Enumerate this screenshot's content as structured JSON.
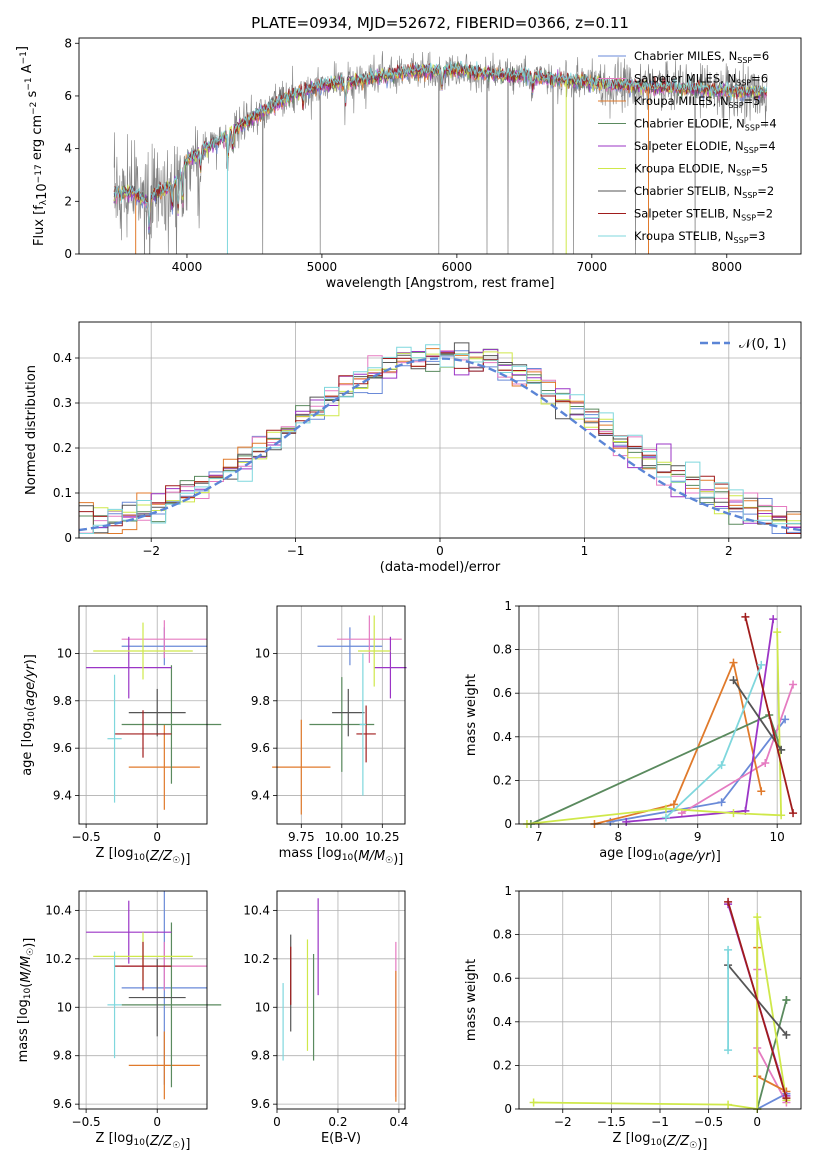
{
  "figure": {
    "title": "PLATE=0934, MJD=52672, FIBERID=0366, z=0.11"
  },
  "model_colors": [
    "#6a8ad8",
    "#e57bc1",
    "#e07a2b",
    "#5a8a5e",
    "#9b35c6",
    "#cfe84a",
    "#555555",
    "#a01c1c",
    "#7fd7dd"
  ],
  "chart_data": [
    {
      "id": "spectrum",
      "type": "line",
      "title": "PLATE=0934, MJD=52672, FIBERID=0366, z=0.11",
      "xlabel": "wavelength [Angstrom, rest frame]",
      "ylabel": "Flux [f_λ 10^-17 erg cm^-2 s^-1 A^-1]",
      "xlim": [
        3200,
        8550
      ],
      "ylim": [
        0,
        8.2
      ],
      "xticks": [
        4000,
        5000,
        6000,
        7000,
        8000
      ],
      "yticks": [
        0,
        2,
        4,
        6,
        8
      ],
      "data_color": "#808080",
      "legend_position": "right",
      "continuum_x": [
        3460,
        3600,
        3700,
        3800,
        3900,
        4000,
        4200,
        4400,
        4600,
        4800,
        5000,
        5300,
        5600,
        6000,
        6300,
        6600,
        7000,
        7300,
        7600,
        8000,
        8300
      ],
      "continuum_y": [
        2.3,
        2.35,
        2.0,
        2.4,
        2.6,
        3.6,
        4.2,
        4.9,
        5.5,
        6.1,
        6.4,
        6.6,
        6.9,
        7.0,
        6.8,
        6.7,
        6.5,
        6.4,
        6.3,
        6.2,
        6.1
      ],
      "series": [
        {
          "name": "Chabrier MILES, N_SSP=6",
          "color": "#6a8ad8"
        },
        {
          "name": "Salpeter MILES, N_SSP=6",
          "color": "#e57bc1"
        },
        {
          "name": "Kroupa MILES, N_SSP=5",
          "color": "#e07a2b"
        },
        {
          "name": "Chabrier ELODIE, N_SSP=4",
          "color": "#5a8a5e"
        },
        {
          "name": "Salpeter ELODIE, N_SSP=4",
          "color": "#9b35c6"
        },
        {
          "name": "Kroupa ELODIE, N_SSP=5",
          "color": "#cfe84a"
        },
        {
          "name": "Chabrier STELIB, N_SSP=2",
          "color": "#555555"
        },
        {
          "name": "Salpeter STELIB, N_SSP=2",
          "color": "#a01c1c"
        },
        {
          "name": "Kroupa STELIB, N_SSP=3",
          "color": "#7fd7dd"
        }
      ]
    },
    {
      "id": "residuals",
      "type": "histogram",
      "xlabel": "(data-model)/error",
      "ylabel": "Normed distribution",
      "xlim": [
        -2.5,
        2.5
      ],
      "ylim": [
        0,
        0.48
      ],
      "xticks": [
        -2,
        -1,
        0,
        1,
        2
      ],
      "yticks": [
        0.0,
        0.1,
        0.2,
        0.3,
        0.4
      ],
      "grid": true,
      "gaussian_label": "𝒩(0, 1)",
      "gaussian_color": "#5b85d6",
      "legend_position": "top-right",
      "bin_width": 0.1
    },
    {
      "id": "age-vs-Z",
      "type": "errorbar",
      "xlabel": "Z [log10(Z/Z☉)]",
      "ylabel": "age [log10(age/yr)]",
      "xlim": [
        -0.55,
        0.35
      ],
      "ylim": [
        9.28,
        10.2
      ],
      "xticks": [
        -0.5,
        0.0
      ],
      "yticks": [
        9.4,
        9.6,
        9.8,
        10.0
      ],
      "grid": true,
      "points": [
        {
          "x": 0.05,
          "y": 10.03,
          "xerr": 0.3,
          "yerr": 0.08,
          "color": "#6a8ad8"
        },
        {
          "x": 0.05,
          "y": 10.06,
          "xerr": 0.3,
          "yerr": 0.08,
          "color": "#e57bc1"
        },
        {
          "x": 0.05,
          "y": 9.52,
          "xerr": 0.25,
          "yerr": 0.18,
          "color": "#e07a2b"
        },
        {
          "x": 0.1,
          "y": 9.7,
          "xerr": 0.35,
          "yerr": 0.25,
          "color": "#5a8a5e"
        },
        {
          "x": -0.2,
          "y": 9.94,
          "xerr": 0.3,
          "yerr": 0.13,
          "color": "#9b35c6"
        },
        {
          "x": -0.1,
          "y": 10.01,
          "xerr": 0.35,
          "yerr": 0.12,
          "color": "#cfe84a"
        },
        {
          "x": 0.0,
          "y": 9.75,
          "xerr": 0.2,
          "yerr": 0.1,
          "color": "#555555"
        },
        {
          "x": -0.1,
          "y": 9.66,
          "xerr": 0.2,
          "yerr": 0.1,
          "color": "#a01c1c"
        },
        {
          "x": -0.3,
          "y": 9.64,
          "xerr": 0.05,
          "yerr": 0.27,
          "color": "#7fd7dd"
        }
      ]
    },
    {
      "id": "age-vs-mass",
      "type": "errorbar",
      "xlabel": "mass [log10(M/M☉)]",
      "xlim": [
        9.6,
        10.39
      ],
      "ylim": [
        9.28,
        10.2
      ],
      "xticks": [
        9.75,
        10.0,
        10.25
      ],
      "xticklabels": [
        "9.75",
        "10.00",
        "10.25"
      ],
      "yticks": [
        9.4,
        9.6,
        9.8,
        10.0
      ],
      "grid": true,
      "points": [
        {
          "x": 10.05,
          "y": 10.03,
          "xerr": 0.2,
          "yerr": 0.08,
          "color": "#6a8ad8"
        },
        {
          "x": 10.17,
          "y": 10.06,
          "xerr": 0.2,
          "yerr": 0.1,
          "color": "#e57bc1"
        },
        {
          "x": 9.75,
          "y": 9.52,
          "xerr": 0.18,
          "yerr": 0.2,
          "color": "#e07a2b"
        },
        {
          "x": 10.0,
          "y": 9.7,
          "xerr": 0.2,
          "yerr": 0.2,
          "color": "#5a8a5e"
        },
        {
          "x": 10.3,
          "y": 9.94,
          "xerr": 0.1,
          "yerr": 0.13,
          "color": "#9b35c6"
        },
        {
          "x": 10.2,
          "y": 10.01,
          "xerr": 0.1,
          "yerr": 0.15,
          "color": "#cfe84a"
        },
        {
          "x": 10.04,
          "y": 9.75,
          "xerr": 0.1,
          "yerr": 0.1,
          "color": "#555555"
        },
        {
          "x": 10.15,
          "y": 9.66,
          "xerr": 0.06,
          "yerr": 0.12,
          "color": "#a01c1c"
        },
        {
          "x": 10.13,
          "y": 9.7,
          "xerr": 0.02,
          "yerr": 0.3,
          "color": "#7fd7dd"
        }
      ]
    },
    {
      "id": "weight-vs-age",
      "type": "line",
      "xlabel": "age [log10(age/yr)]",
      "ylabel": "mass weight",
      "xlim": [
        6.75,
        10.3
      ],
      "ylim": [
        0,
        1.0
      ],
      "xticks": [
        7,
        8,
        9,
        10
      ],
      "yticks": [
        0.0,
        0.2,
        0.4,
        0.6,
        0.8,
        1.0
      ],
      "grid": true,
      "series": [
        {
          "color": "#6a8ad8",
          "x": [
            7.9,
            9.3,
            10.1
          ],
          "y": [
            0.01,
            0.1,
            0.48
          ]
        },
        {
          "color": "#e57bc1",
          "x": [
            8.8,
            9.85,
            10.2
          ],
          "y": [
            0.05,
            0.28,
            0.64
          ]
        },
        {
          "color": "#e07a2b",
          "x": [
            7.7,
            8.7,
            9.45,
            9.8
          ],
          "y": [
            0.0,
            0.09,
            0.74,
            0.15
          ]
        },
        {
          "color": "#5a8a5e",
          "x": [
            6.9,
            9.9,
            10.05
          ],
          "y": [
            0.0,
            0.5,
            0.34
          ]
        },
        {
          "color": "#9b35c6",
          "x": [
            8.1,
            9.6,
            9.95
          ],
          "y": [
            0.01,
            0.06,
            0.94
          ]
        },
        {
          "color": "#cfe84a",
          "x": [
            6.85,
            8.6,
            9.45,
            10.05,
            10.0
          ],
          "y": [
            0.0,
            0.07,
            0.05,
            0.04,
            0.88
          ]
        },
        {
          "color": "#555555",
          "x": [
            9.45,
            10.05
          ],
          "y": [
            0.66,
            0.34
          ]
        },
        {
          "color": "#a01c1c",
          "x": [
            9.6,
            10.2
          ],
          "y": [
            0.95,
            0.05
          ]
        },
        {
          "color": "#7fd7dd",
          "x": [
            8.6,
            9.3,
            9.8
          ],
          "y": [
            0.03,
            0.27,
            0.73
          ]
        }
      ]
    },
    {
      "id": "mass-vs-Z",
      "type": "errorbar",
      "xlabel": "Z [log10(Z/Z☉)]",
      "ylabel": "mass [log10(M/M☉)]",
      "xlim": [
        -0.55,
        0.35
      ],
      "ylim": [
        9.58,
        10.48
      ],
      "xticks": [
        -0.5,
        0.0
      ],
      "yticks": [
        9.6,
        9.8,
        10.0,
        10.2,
        10.4
      ],
      "grid": true,
      "points": [
        {
          "x": 0.05,
          "y": 10.08,
          "xerr": 0.3,
          "yerr": 0.4,
          "color": "#6a8ad8"
        },
        {
          "x": 0.05,
          "y": 10.17,
          "xerr": 0.3,
          "yerr": 0.1,
          "color": "#e57bc1"
        },
        {
          "x": 0.05,
          "y": 9.76,
          "xerr": 0.25,
          "yerr": 0.14,
          "color": "#e07a2b"
        },
        {
          "x": 0.1,
          "y": 10.01,
          "xerr": 0.35,
          "yerr": 0.34,
          "color": "#5a8a5e"
        },
        {
          "x": -0.2,
          "y": 10.31,
          "xerr": 0.3,
          "yerr": 0.13,
          "color": "#9b35c6"
        },
        {
          "x": -0.1,
          "y": 10.21,
          "xerr": 0.35,
          "yerr": 0.1,
          "color": "#cfe84a"
        },
        {
          "x": 0.0,
          "y": 10.04,
          "xerr": 0.2,
          "yerr": 0.16,
          "color": "#555555"
        },
        {
          "x": -0.1,
          "y": 10.17,
          "xerr": 0.2,
          "yerr": 0.1,
          "color": "#a01c1c"
        },
        {
          "x": -0.3,
          "y": 10.01,
          "xerr": 0.05,
          "yerr": 0.22,
          "color": "#7fd7dd"
        }
      ]
    },
    {
      "id": "mass-vs-EBV",
      "type": "errorbar",
      "xlabel": "E(B-V)",
      "xlim": [
        0.0,
        0.42
      ],
      "ylim": [
        9.58,
        10.48
      ],
      "xticks": [
        0.0,
        0.2,
        0.4
      ],
      "yticks": [
        9.6,
        9.8,
        10.0,
        10.2,
        10.4
      ],
      "grid": true,
      "points": [
        {
          "x": 0.39,
          "y": 9.95,
          "xerr": 0.0,
          "yerr": 0.32,
          "color": "#e57bc1"
        },
        {
          "x": 0.39,
          "y": 9.88,
          "xerr": 0.0,
          "yerr": 0.27,
          "color": "#e07a2b"
        },
        {
          "x": 0.12,
          "y": 10.0,
          "xerr": 0.0,
          "yerr": 0.22,
          "color": "#5a8a5e"
        },
        {
          "x": 0.135,
          "y": 10.25,
          "xerr": 0.0,
          "yerr": 0.2,
          "color": "#9b35c6"
        },
        {
          "x": 0.1,
          "y": 10.05,
          "xerr": 0.0,
          "yerr": 0.23,
          "color": "#cfe84a"
        },
        {
          "x": 0.045,
          "y": 10.1,
          "xerr": 0.0,
          "yerr": 0.2,
          "color": "#555555"
        },
        {
          "x": 0.045,
          "y": 10.13,
          "xerr": 0.0,
          "yerr": 0.12,
          "color": "#a01c1c"
        },
        {
          "x": 0.02,
          "y": 9.94,
          "xerr": 0.0,
          "yerr": 0.16,
          "color": "#7fd7dd"
        }
      ]
    },
    {
      "id": "weight-vs-Z",
      "type": "line",
      "xlabel": "Z [log10(Z/Z☉)]",
      "ylabel": "mass weight",
      "xlim": [
        -2.45,
        0.45
      ],
      "ylim": [
        0,
        1.0
      ],
      "xticks": [
        -2.0,
        -1.5,
        -1.0,
        -0.5,
        0.0
      ],
      "yticks": [
        0.0,
        0.2,
        0.4,
        0.6,
        0.8,
        1.0
      ],
      "grid": true,
      "series": [
        {
          "color": "#6a8ad8",
          "x": [
            0.0,
            0.3
          ],
          "y": [
            0.0,
            0.07
          ]
        },
        {
          "color": "#e57bc1",
          "x": [
            0.0,
            0.0,
            0.3
          ],
          "y": [
            0.64,
            0.28,
            0.03
          ]
        },
        {
          "color": "#e07a2b",
          "x": [
            0.0,
            0.0,
            0.3
          ],
          "y": [
            0.74,
            0.15,
            0.08
          ]
        },
        {
          "color": "#5a8a5e",
          "x": [
            0.0,
            0.3,
            0.3
          ],
          "y": [
            0.0,
            0.5,
            0.5
          ]
        },
        {
          "color": "#9b35c6",
          "x": [
            -0.3,
            0.3
          ],
          "y": [
            0.94,
            0.06
          ]
        },
        {
          "color": "#cfe84a",
          "x": [
            -2.3,
            -0.3,
            0.0,
            0.0,
            0.3
          ],
          "y": [
            0.03,
            0.02,
            0.0,
            0.88,
            0.04
          ]
        },
        {
          "color": "#555555",
          "x": [
            -0.3,
            0.3
          ],
          "y": [
            0.66,
            0.34
          ]
        },
        {
          "color": "#a01c1c",
          "x": [
            -0.3,
            0.3
          ],
          "y": [
            0.95,
            0.05
          ]
        },
        {
          "color": "#7fd7dd",
          "x": [
            -0.3,
            -0.3
          ],
          "y": [
            0.73,
            0.27
          ]
        }
      ]
    }
  ]
}
